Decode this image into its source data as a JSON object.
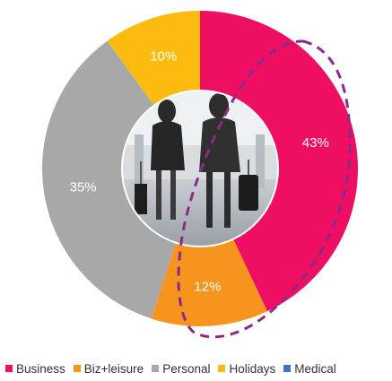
{
  "chart_data": {
    "type": "pie",
    "donut": true,
    "categories": [
      "Business",
      "Biz+leisure",
      "Personal",
      "Holidays",
      "Medical"
    ],
    "values": [
      43,
      12,
      35,
      10,
      0
    ],
    "value_labels": [
      "43%",
      "12%",
      "35%",
      "10%",
      ""
    ],
    "colors": [
      "#ee0f63",
      "#f7941d",
      "#a8a8a8",
      "#fdbb0f",
      "#4472c4"
    ],
    "legend_position": "bottom",
    "highlight": "Business and Biz+leisure segments circled with dashed purple outline",
    "highlight_color": "#8b2a8b"
  }
}
